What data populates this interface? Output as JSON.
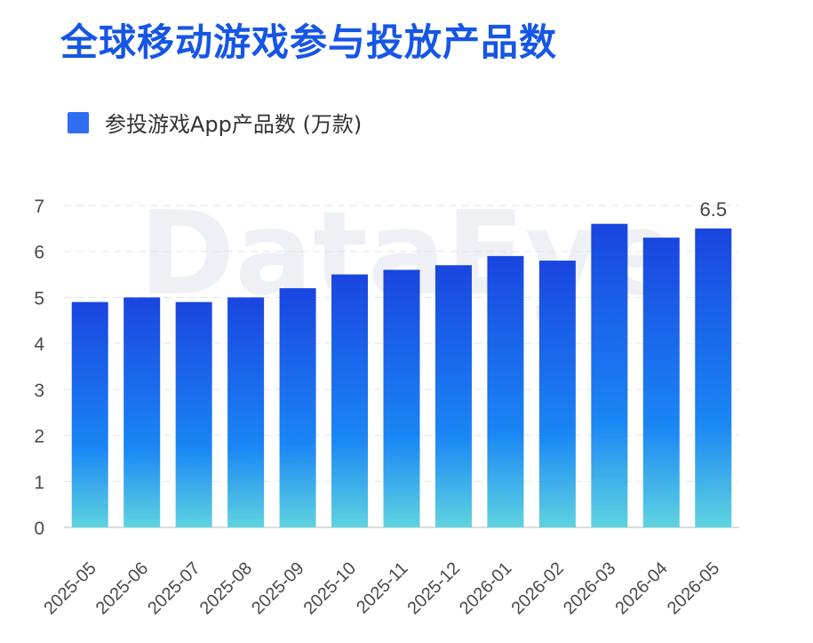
{
  "header": {
    "title": "全球移动游戏参与投放产品数"
  },
  "legend": {
    "label": "参投游戏App产品数 (万款)"
  },
  "watermark": "DataEye",
  "colors": {
    "title": "#1656e6",
    "bar_top": "#1a45e0",
    "bar_mid": "#1a86f5",
    "bar_bottom": "#5fd3e0",
    "legend": "#2f6df2"
  },
  "chart_data": {
    "type": "bar",
    "categories": [
      "2025-05",
      "2025-06",
      "2025-07",
      "2025-08",
      "2025-09",
      "2025-10",
      "2025-11",
      "2025-12",
      "2026-01",
      "2026-02",
      "2026-03",
      "2026-04",
      "2026-05"
    ],
    "series": [
      {
        "name": "参投游戏App产品数 (万款)",
        "values": [
          4.9,
          5.0,
          4.9,
          5.0,
          5.2,
          5.5,
          5.6,
          5.7,
          5.9,
          5.8,
          6.6,
          6.3,
          6.5
        ]
      }
    ],
    "yticks": [
      0,
      1,
      2,
      3,
      4,
      5,
      6,
      7
    ],
    "ylim": [
      0,
      7
    ],
    "data_labels": [
      {
        "index": 12,
        "text": "6.5"
      }
    ],
    "grid": true,
    "legend_position": "top-left"
  }
}
